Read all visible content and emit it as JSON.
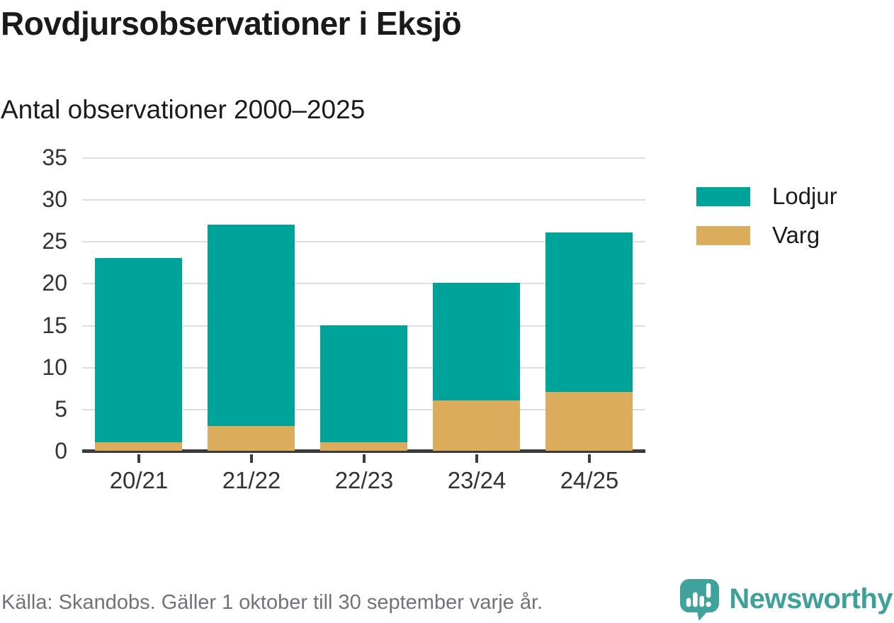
{
  "header": {
    "title": "Rovdjursobservationer i Eksjö",
    "subtitle": "Antal observationer 2000–2025"
  },
  "legend": {
    "items": [
      {
        "label": "Lodjur",
        "color": "#00a39a"
      },
      {
        "label": "Varg",
        "color": "#dbac5c"
      }
    ]
  },
  "footer": {
    "source": "Källa: Skandobs. Gäller 1 oktober till 30 september varje år.",
    "brand": "Newsworthy",
    "logo_icon": "newsworthy-chart-speech-bubble-icon",
    "brand_color": "#3fa09a"
  },
  "colors": {
    "lodjur_teal": "#00a39a",
    "varg_gold": "#dbac5c",
    "axis": "#3b3b3b",
    "gridline": "#dedede",
    "tick_label": "#333333",
    "source_gray": "#6e747a",
    "brand_teal": "#3fa09a",
    "background": "#ffffff"
  },
  "chart_data": {
    "type": "bar",
    "stacked": true,
    "title": "Rovdjursobservationer i Eksjö",
    "subtitle": "Antal observationer 2000–2025",
    "categories": [
      "20/21",
      "21/22",
      "22/23",
      "23/24",
      "24/25"
    ],
    "series": [
      {
        "name": "Lodjur",
        "color": "#00a39a",
        "values": [
          22,
          24,
          14,
          14,
          19
        ]
      },
      {
        "name": "Varg",
        "color": "#dbac5c",
        "values": [
          1,
          3,
          1,
          6,
          7
        ]
      }
    ],
    "stack_totals": [
      23,
      27,
      15,
      20,
      26
    ],
    "ylim": [
      0,
      35
    ],
    "yticks": [
      0,
      5,
      10,
      15,
      20,
      25,
      30,
      35
    ],
    "xlabel": "",
    "ylabel": "",
    "grid": "horizontal",
    "legend_position": "right"
  }
}
